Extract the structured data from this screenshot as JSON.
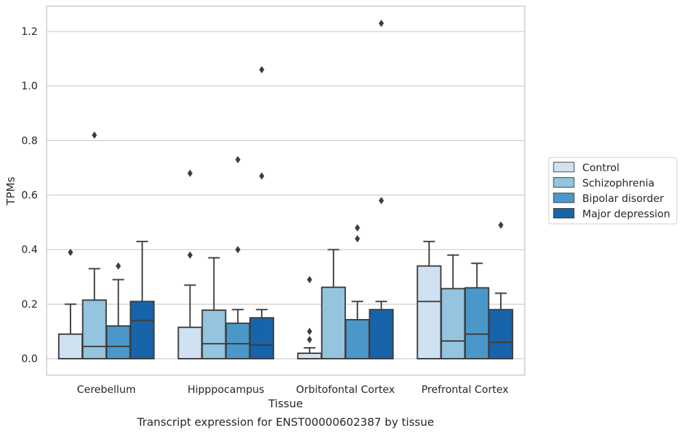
{
  "chart_data": {
    "type": "box",
    "title": "",
    "caption": "Transcript expression for ENST00000602387 by tissue",
    "xlabel": "Tissue",
    "ylabel": "TPMs",
    "ylim": [
      -0.06,
      1.29
    ],
    "yticks": [
      0.0,
      0.2,
      0.4,
      0.6,
      0.8,
      1.0,
      1.2
    ],
    "ytick_labels": [
      "0.0",
      "0.2",
      "0.4",
      "0.6",
      "0.8",
      "1.0",
      "1.2"
    ],
    "grid": "y",
    "legend_position": "right",
    "categories": [
      "Cerebellum",
      "Hipppocampus",
      "Orbitofontal Cortex",
      "Prefrontal Cortex"
    ],
    "series": [
      {
        "name": "Control",
        "color": "#d0e1f2",
        "boxes": [
          {
            "whislo": 0.0,
            "q1": 0.0,
            "med": 0.0,
            "q3": 0.09,
            "whishi": 0.2,
            "fliers": [
              0.39
            ]
          },
          {
            "whislo": 0.0,
            "q1": 0.0,
            "med": 0.0,
            "q3": 0.115,
            "whishi": 0.27,
            "fliers": [
              0.38,
              0.68
            ]
          },
          {
            "whislo": 0.0,
            "q1": 0.0,
            "med": 0.0,
            "q3": 0.02,
            "whishi": 0.04,
            "fliers": [
              0.07,
              0.1,
              0.29
            ]
          },
          {
            "whislo": 0.0,
            "q1": 0.0,
            "med": 0.21,
            "q3": 0.34,
            "whishi": 0.43,
            "fliers": []
          }
        ]
      },
      {
        "name": "Schizophrenia",
        "color": "#94c4df",
        "boxes": [
          {
            "whislo": 0.0,
            "q1": 0.0,
            "med": 0.045,
            "q3": 0.215,
            "whishi": 0.33,
            "fliers": [
              0.82
            ]
          },
          {
            "whislo": 0.0,
            "q1": 0.0,
            "med": 0.055,
            "q3": 0.178,
            "whishi": 0.37,
            "fliers": []
          },
          {
            "whislo": 0.0,
            "q1": 0.0,
            "med": 0.0,
            "q3": 0.262,
            "whishi": 0.4,
            "fliers": []
          },
          {
            "whislo": 0.0,
            "q1": 0.0,
            "med": 0.065,
            "q3": 0.257,
            "whishi": 0.38,
            "fliers": []
          }
        ]
      },
      {
        "name": "Bipolar disorder",
        "color": "#4a98c9",
        "boxes": [
          {
            "whislo": 0.0,
            "q1": 0.0,
            "med": 0.045,
            "q3": 0.12,
            "whishi": 0.29,
            "fliers": [
              0.34
            ]
          },
          {
            "whislo": 0.0,
            "q1": 0.0,
            "med": 0.055,
            "q3": 0.13,
            "whishi": 0.18,
            "fliers": [
              0.4,
              0.73
            ]
          },
          {
            "whislo": 0.0,
            "q1": 0.0,
            "med": 0.0,
            "q3": 0.143,
            "whishi": 0.21,
            "fliers": [
              0.44,
              0.48
            ]
          },
          {
            "whislo": 0.0,
            "q1": 0.0,
            "med": 0.09,
            "q3": 0.26,
            "whishi": 0.35,
            "fliers": []
          }
        ]
      },
      {
        "name": "Major depression",
        "color": "#1764ab",
        "boxes": [
          {
            "whislo": 0.0,
            "q1": 0.0,
            "med": 0.14,
            "q3": 0.21,
            "whishi": 0.43,
            "fliers": []
          },
          {
            "whislo": 0.0,
            "q1": 0.0,
            "med": 0.05,
            "q3": 0.15,
            "whishi": 0.18,
            "fliers": [
              0.67,
              1.06
            ]
          },
          {
            "whislo": 0.0,
            "q1": 0.0,
            "med": 0.0,
            "q3": 0.18,
            "whishi": 0.21,
            "fliers": [
              0.58,
              1.23
            ]
          },
          {
            "whislo": 0.0,
            "q1": 0.0,
            "med": 0.06,
            "q3": 0.18,
            "whishi": 0.24,
            "fliers": [
              0.49
            ]
          }
        ]
      }
    ]
  }
}
